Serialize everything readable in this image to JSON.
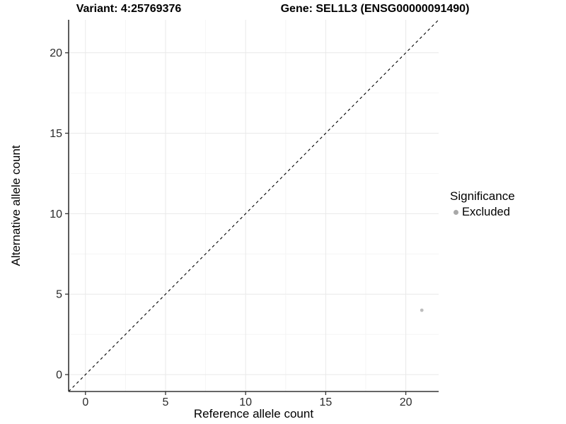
{
  "chart_data": {
    "type": "scatter",
    "title_left": "Variant: 4:25769376",
    "title_right": "Gene: SEL1L3 (ENSG00000091490)",
    "xlabel": "Reference allele count",
    "ylabel": "Alternative allele count",
    "xlim": [
      -1.05,
      22.05
    ],
    "ylim": [
      -1.05,
      22.05
    ],
    "xticks": [
      0,
      5,
      10,
      15,
      20
    ],
    "yticks": [
      0,
      5,
      10,
      15,
      20
    ],
    "x_minor": [
      2.5,
      7.5,
      12.5,
      17.5
    ],
    "y_minor": [
      2.5,
      7.5,
      12.5,
      17.5
    ],
    "grid": {
      "major_color": "#e9e9e9",
      "minor_color": "#f4f4f4",
      "grid_on": true
    },
    "identity_line": {
      "style": "dashed",
      "color": "#000000",
      "dash": "4 4"
    },
    "series": [
      {
        "name": "Excluded",
        "color": "#bdbdbd",
        "points": [
          {
            "x": 21,
            "y": 4
          }
        ]
      }
    ],
    "legend": {
      "title": "Significance",
      "position": "right",
      "items": [
        {
          "label": "Excluded",
          "color": "#a8a8a8"
        }
      ]
    },
    "axis": {
      "line_color": "#333333",
      "tick_color": "#333333",
      "tick_label_color": "#2b2b2b"
    }
  }
}
